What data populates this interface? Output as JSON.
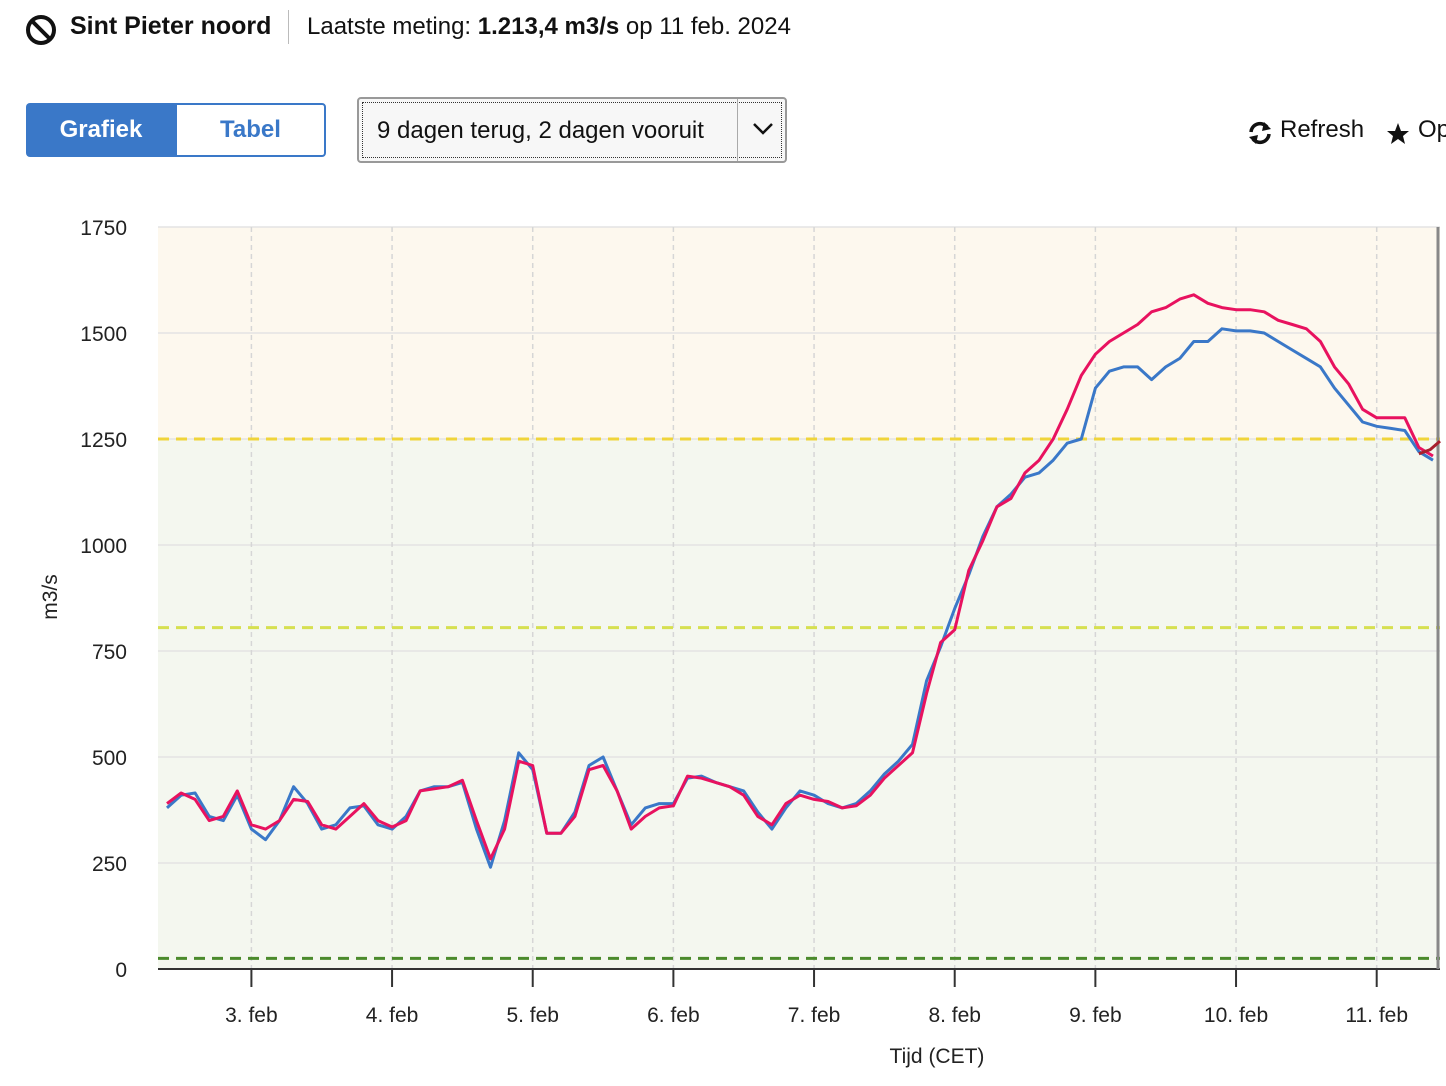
{
  "header": {
    "station": "Sint Pieter noord",
    "measurement_label": "Laatste meting:",
    "measurement_value": "1.213,4 m3/s",
    "measurement_date": "op 11 feb. 2024"
  },
  "controls": {
    "tabs": [
      "Grafiek",
      "Tabel"
    ],
    "period": "9 dagen terug, 2 dagen vooruit",
    "refresh": "Refresh",
    "save": "Op"
  },
  "chart_data": {
    "type": "line",
    "xlabel": "Tijd (CET)",
    "ylabel": "m3/s",
    "xlim": [
      2.336,
      11.45
    ],
    "ylim": [
      0,
      1750
    ],
    "xticks": [
      {
        "value": 3,
        "label": "3. feb"
      },
      {
        "value": 4,
        "label": "4. feb"
      },
      {
        "value": 5,
        "label": "5. feb"
      },
      {
        "value": 6,
        "label": "6. feb"
      },
      {
        "value": 7,
        "label": "7. feb"
      },
      {
        "value": 8,
        "label": "8. feb"
      },
      {
        "value": 9,
        "label": "9. feb"
      },
      {
        "value": 10,
        "label": "10. feb"
      },
      {
        "value": 11,
        "label": "11. feb"
      }
    ],
    "yticks": [
      0,
      250,
      500,
      750,
      1000,
      1250,
      1500,
      1750
    ],
    "grid": true,
    "bands": [
      {
        "from": 1250,
        "to": 1750,
        "color": "#fdf8ee"
      },
      {
        "from": 0,
        "to": 1250,
        "color": "#f4f7ef"
      }
    ],
    "thresholds": [
      {
        "value": 1250,
        "color": "#f0d43a"
      },
      {
        "value": 805,
        "color": "#d6e050"
      },
      {
        "value": 25,
        "color": "#4b8a2c"
      }
    ],
    "series": [
      {
        "color": "#3a78c8",
        "x": [
          2.4,
          2.5,
          2.6,
          2.7,
          2.8,
          2.9,
          3.0,
          3.1,
          3.2,
          3.3,
          3.4,
          3.5,
          3.6,
          3.7,
          3.8,
          3.9,
          4.0,
          4.1,
          4.2,
          4.3,
          4.4,
          4.5,
          4.6,
          4.7,
          4.8,
          4.9,
          5.0,
          5.1,
          5.2,
          5.3,
          5.4,
          5.5,
          5.6,
          5.7,
          5.8,
          5.9,
          6.0,
          6.1,
          6.2,
          6.3,
          6.4,
          6.5,
          6.6,
          6.7,
          6.8,
          6.9,
          7.0,
          7.1,
          7.2,
          7.3,
          7.4,
          7.5,
          7.6,
          7.7,
          7.8,
          7.9,
          8.0,
          8.1,
          8.2,
          8.3,
          8.4,
          8.5,
          8.6,
          8.7,
          8.8,
          8.9,
          9.0,
          9.1,
          9.2,
          9.3,
          9.4,
          9.5,
          9.6,
          9.7,
          9.8,
          9.9,
          10.0,
          10.1,
          10.2,
          10.3,
          10.4,
          10.5,
          10.6,
          10.7,
          10.8,
          10.9,
          11.0,
          11.1,
          11.2,
          11.3,
          11.4
        ],
        "values": [
          380,
          410,
          415,
          360,
          350,
          410,
          330,
          305,
          350,
          430,
          390,
          330,
          340,
          380,
          385,
          340,
          330,
          360,
          420,
          430,
          430,
          440,
          330,
          240,
          350,
          510,
          470,
          320,
          320,
          370,
          480,
          500,
          420,
          340,
          380,
          390,
          390,
          450,
          455,
          440,
          430,
          420,
          370,
          330,
          380,
          420,
          410,
          390,
          380,
          390,
          420,
          460,
          490,
          530,
          680,
          760,
          850,
          930,
          1020,
          1090,
          1120,
          1160,
          1170,
          1200,
          1240,
          1250,
          1370,
          1410,
          1420,
          1420,
          1390,
          1420,
          1440,
          1480,
          1480,
          1510,
          1505,
          1505,
          1500,
          1480,
          1460,
          1440,
          1420,
          1370,
          1330,
          1290,
          1280,
          1275,
          1270,
          1220,
          1200
        ]
      },
      {
        "color": "#e8125f",
        "x": [
          2.4,
          2.5,
          2.6,
          2.7,
          2.8,
          2.9,
          3.0,
          3.1,
          3.2,
          3.3,
          3.4,
          3.5,
          3.6,
          3.7,
          3.8,
          3.9,
          4.0,
          4.1,
          4.2,
          4.3,
          4.4,
          4.5,
          4.6,
          4.7,
          4.8,
          4.9,
          5.0,
          5.1,
          5.2,
          5.3,
          5.4,
          5.5,
          5.6,
          5.7,
          5.8,
          5.9,
          6.0,
          6.1,
          6.2,
          6.3,
          6.4,
          6.5,
          6.6,
          6.7,
          6.8,
          6.9,
          7.0,
          7.1,
          7.2,
          7.3,
          7.4,
          7.5,
          7.6,
          7.7,
          7.8,
          7.9,
          8.0,
          8.1,
          8.2,
          8.3,
          8.4,
          8.5,
          8.6,
          8.7,
          8.8,
          8.9,
          9.0,
          9.1,
          9.2,
          9.3,
          9.4,
          9.5,
          9.6,
          9.7,
          9.8,
          9.9,
          10.0,
          10.1,
          10.2,
          10.3,
          10.4,
          10.5,
          10.6,
          10.7,
          10.8,
          10.9,
          11.0,
          11.1,
          11.2,
          11.3,
          11.4
        ],
        "values": [
          390,
          415,
          400,
          350,
          360,
          420,
          340,
          330,
          350,
          400,
          395,
          340,
          330,
          360,
          390,
          350,
          335,
          350,
          420,
          425,
          430,
          445,
          350,
          260,
          330,
          490,
          480,
          320,
          320,
          360,
          470,
          480,
          420,
          330,
          360,
          380,
          385,
          455,
          450,
          440,
          430,
          410,
          360,
          340,
          390,
          410,
          400,
          395,
          380,
          385,
          410,
          450,
          480,
          510,
          650,
          770,
          800,
          940,
          1010,
          1090,
          1110,
          1170,
          1200,
          1250,
          1320,
          1400,
          1450,
          1480,
          1500,
          1520,
          1550,
          1560,
          1580,
          1590,
          1570,
          1560,
          1555,
          1555,
          1550,
          1530,
          1520,
          1510,
          1480,
          1420,
          1380,
          1320,
          1300,
          1300,
          1300,
          1230,
          1210
        ]
      },
      {
        "color": "#a8202e",
        "x": [
          11.3,
          11.38,
          11.45
        ],
        "values": [
          1215,
          1225,
          1245
        ]
      }
    ]
  }
}
